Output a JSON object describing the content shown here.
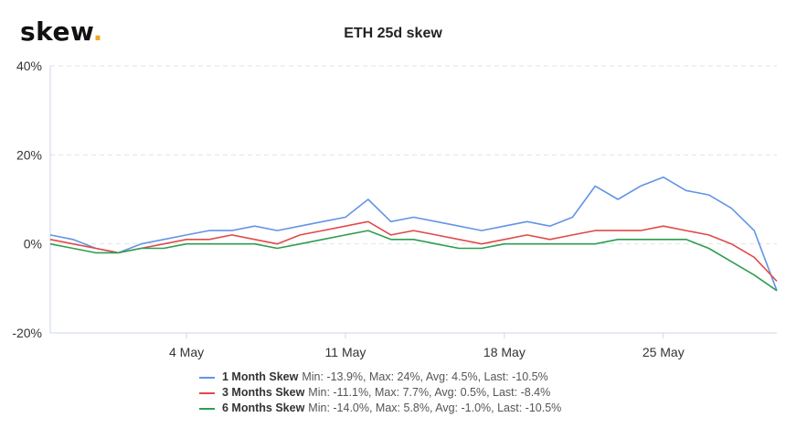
{
  "brand": {
    "name": "skew",
    "dot": "."
  },
  "chart_data": {
    "type": "line",
    "title": "ETH 25d skew",
    "xlabel": "",
    "ylabel": "",
    "ylim": [
      -20,
      40
    ],
    "yticks": [
      -20,
      0,
      20,
      40
    ],
    "ytick_labels": [
      "-20%",
      "0%",
      "20%",
      "40%"
    ],
    "xlim": [
      "2020-04-28",
      "2020-05-30"
    ],
    "xticks": [
      "2020-05-04",
      "2020-05-11",
      "2020-05-18",
      "2020-05-25"
    ],
    "xtick_labels": [
      "4 May",
      "11 May",
      "18 May",
      "25 May"
    ],
    "grid": true,
    "legend_position": "bottom",
    "x": [
      "2020-04-28",
      "2020-04-29",
      "2020-04-30",
      "2020-05-01",
      "2020-05-02",
      "2020-05-03",
      "2020-05-04",
      "2020-05-05",
      "2020-05-06",
      "2020-05-07",
      "2020-05-08",
      "2020-05-09",
      "2020-05-10",
      "2020-05-11",
      "2020-05-12",
      "2020-05-13",
      "2020-05-14",
      "2020-05-15",
      "2020-05-16",
      "2020-05-17",
      "2020-05-18",
      "2020-05-19",
      "2020-05-20",
      "2020-05-21",
      "2020-05-22",
      "2020-05-23",
      "2020-05-24",
      "2020-05-25",
      "2020-05-26",
      "2020-05-27",
      "2020-05-28",
      "2020-05-29",
      "2020-05-30"
    ],
    "series": [
      {
        "name": "1 Month Skew",
        "color": "#6394e6",
        "stats": "Min: -13.9%, Max: 24%, Avg: 4.5%, Last: -10.5%",
        "values": [
          2,
          1,
          -1,
          -2,
          0,
          1,
          2,
          3,
          3,
          4,
          3,
          4,
          5,
          6,
          10,
          5,
          6,
          5,
          4,
          3,
          4,
          5,
          4,
          6,
          13,
          10,
          13,
          15,
          12,
          11,
          8,
          3,
          -10.5
        ]
      },
      {
        "name": "3 Months Skew",
        "color": "#e04a4a",
        "stats": "Min: -11.1%, Max: 7.7%, Avg: 0.5%, Last: -8.4%",
        "values": [
          1,
          0,
          -1,
          -2,
          -1,
          0,
          1,
          1,
          2,
          1,
          0,
          2,
          3,
          4,
          5,
          2,
          3,
          2,
          1,
          0,
          1,
          2,
          1,
          2,
          3,
          3,
          3,
          4,
          3,
          2,
          0,
          -3,
          -8.4
        ]
      },
      {
        "name": "6 Months Skew",
        "color": "#2e9e4f",
        "stats": "Min: -14.0%, Max: 5.8%, Avg: -1.0%, Last: -10.5%",
        "values": [
          0,
          -1,
          -2,
          -2,
          -1,
          -1,
          0,
          0,
          0,
          0,
          -1,
          0,
          1,
          2,
          3,
          1,
          1,
          0,
          -1,
          -1,
          0,
          0,
          0,
          0,
          0,
          1,
          1,
          1,
          1,
          -1,
          -4,
          -7,
          -10.5
        ]
      }
    ]
  }
}
